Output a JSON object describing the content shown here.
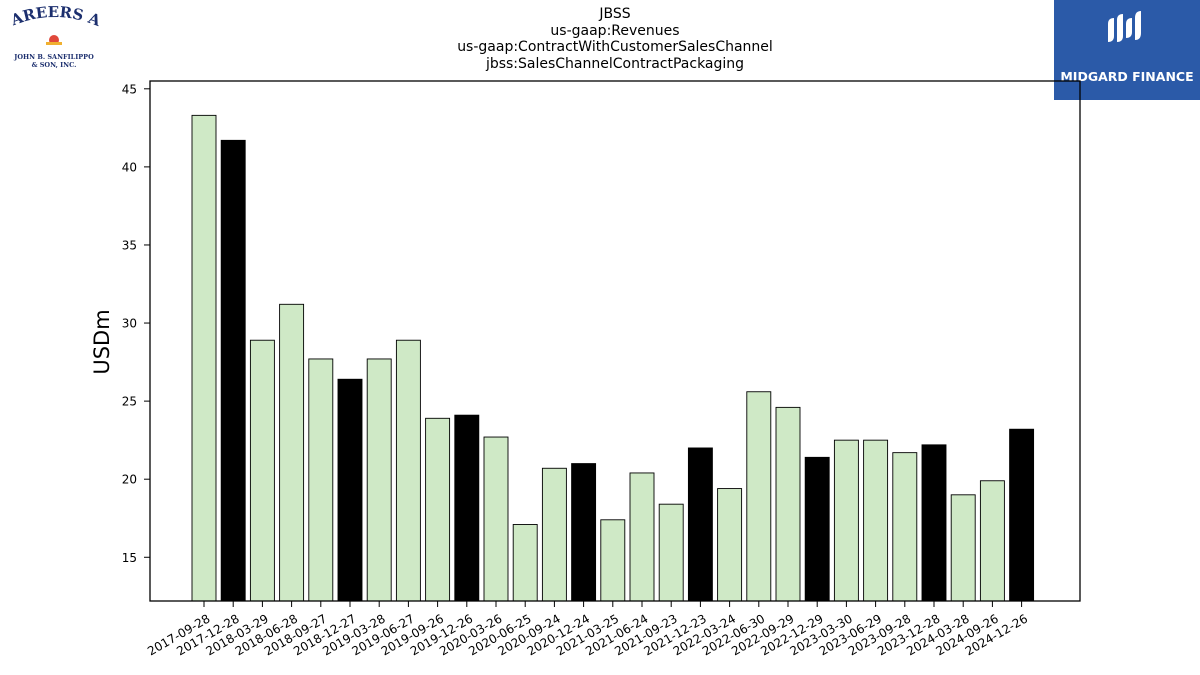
{
  "titles": {
    "line1": "JBSS",
    "line2": "us-gaap:Revenues",
    "line3": "us-gaap:ContractWithCustomerSalesChannel",
    "line4": "jbss:SalesChannelContractPackaging"
  },
  "logos": {
    "left_line1": "CAREERS AT",
    "left_line2": "JOHN B. SANFILIPPO",
    "left_line3": "& SON, INC.",
    "right_brand": "MIDGARD FINANCE"
  },
  "colors": {
    "bar_light": "#cfe9c6",
    "bar_dark": "#000000",
    "bar_edge": "#000000",
    "brand_blue": "#2b5aa8"
  },
  "chart_data": {
    "type": "bar",
    "ylabel": "USDm",
    "xlabel": "",
    "ylim": [
      12.2,
      45.5
    ],
    "yticks": [
      15,
      20,
      25,
      30,
      35,
      40,
      45
    ],
    "categories": [
      "2017-09-28",
      "2017-12-28",
      "2018-03-29",
      "2018-06-28",
      "2018-09-27",
      "2018-12-27",
      "2019-03-28",
      "2019-06-27",
      "2019-09-26",
      "2019-12-26",
      "2020-03-26",
      "2020-06-25",
      "2020-09-24",
      "2020-12-24",
      "2021-03-25",
      "2021-06-24",
      "2021-09-23",
      "2021-12-23",
      "2022-03-24",
      "2022-06-30",
      "2022-09-29",
      "2022-12-29",
      "2023-03-30",
      "2023-06-29",
      "2023-09-28",
      "2023-12-28",
      "2024-03-28",
      "2024-09-26",
      "2024-12-26"
    ],
    "values": [
      43.3,
      41.7,
      28.9,
      31.2,
      27.7,
      26.4,
      27.7,
      28.9,
      23.9,
      24.1,
      22.7,
      17.1,
      20.7,
      21.0,
      17.4,
      20.4,
      18.4,
      22.0,
      19.4,
      25.6,
      24.6,
      21.4,
      22.5,
      22.5,
      21.7,
      22.2,
      19.0,
      19.9,
      23.2
    ],
    "highlight_quarter": [
      "light",
      "dark",
      "light",
      "light",
      "light",
      "dark",
      "light",
      "light",
      "light",
      "dark",
      "light",
      "light",
      "light",
      "dark",
      "light",
      "light",
      "light",
      "dark",
      "light",
      "light",
      "light",
      "dark",
      "light",
      "light",
      "light",
      "dark",
      "light",
      "light",
      "dark"
    ],
    "grid": false,
    "legend": "none"
  }
}
